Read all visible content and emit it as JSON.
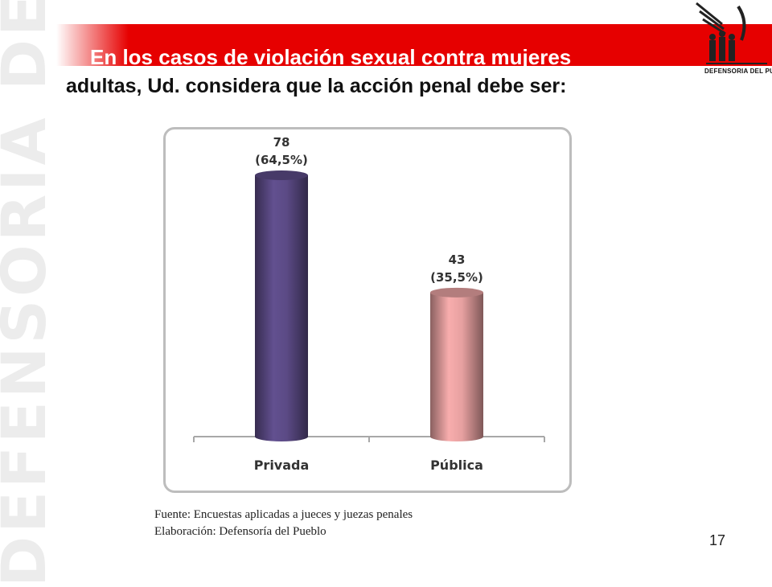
{
  "watermark": "DEFENSORIA DEL PUEBLO",
  "title": {
    "line1": "En los casos de violación sexual contra mujeres",
    "line2": "adultas, Ud. considera que la acción penal debe ser:"
  },
  "logo": {
    "icon": "defensoria-emblem-icon",
    "text": "DEFENSORIA DEL PUEBLO"
  },
  "colors": {
    "band": "#e60000",
    "privada": "#5b4a85",
    "publica": "#e6a0a0"
  },
  "chart_data": {
    "type": "bar",
    "style": "3d-cylinder",
    "categories": [
      "Privada",
      "Pública"
    ],
    "values": [
      78,
      43
    ],
    "data_labels": [
      {
        "count": "78",
        "percent": "(64,5%)"
      },
      {
        "count": "43",
        "percent": "(35,5%)"
      }
    ],
    "colors": [
      "#5b4a85",
      "#e6a0a0"
    ],
    "ylim": [
      0,
      90
    ],
    "grid": false,
    "legend": "none"
  },
  "footer": {
    "source": "Fuente: Encuestas aplicadas a jueces y juezas penales",
    "elaboration": "Elaboración: Defensoría del Pueblo",
    "page_number": "17"
  }
}
